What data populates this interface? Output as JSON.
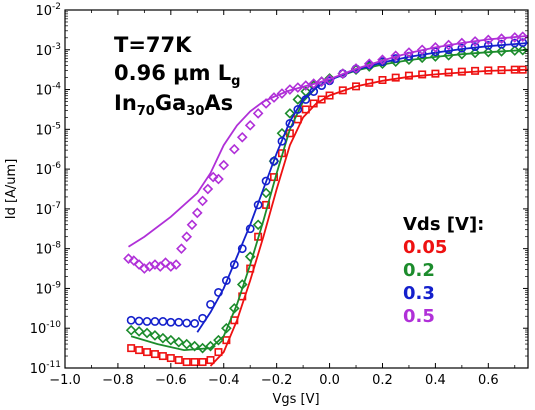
{
  "chart_data": {
    "type": "scatter",
    "title": "",
    "xlabel": "Vgs [V]",
    "ylabel": "Id [A/um]",
    "xlim": [
      -1.0,
      0.75
    ],
    "ylim_log10": [
      -11,
      -2
    ],
    "yscale": "log",
    "x_ticks": [
      "−1.0",
      "−0.8",
      "−0.6",
      "−0.4",
      "−0.2",
      "0.0",
      "0.2",
      "0.4",
      "0.6"
    ],
    "y_ticks": [
      "10-11",
      "10-10",
      "10-9",
      "10-8",
      "10-7",
      "10-6",
      "10-5",
      "10-4",
      "10-3",
      "10-2"
    ],
    "annotations": {
      "temp": "T=77K",
      "length_value": "0.96 μm L",
      "length_sub": "g",
      "material_a": "In",
      "material_sub1": "70",
      "material_b": "Ga",
      "material_sub2": "30",
      "material_c": "As"
    },
    "legend_title": "Vds [V]:",
    "legend_position": "right",
    "series": [
      {
        "name": "0.05",
        "color": "#ee1111",
        "marker": "square",
        "points": [
          [
            -0.75,
            -10.5
          ],
          [
            -0.72,
            -10.55
          ],
          [
            -0.69,
            -10.6
          ],
          [
            -0.66,
            -10.65
          ],
          [
            -0.63,
            -10.7
          ],
          [
            -0.6,
            -10.75
          ],
          [
            -0.57,
            -10.8
          ],
          [
            -0.54,
            -10.85
          ],
          [
            -0.51,
            -10.85
          ],
          [
            -0.48,
            -10.85
          ],
          [
            -0.45,
            -10.8
          ],
          [
            -0.42,
            -10.6
          ],
          [
            -0.39,
            -10.3
          ],
          [
            -0.36,
            -9.8
          ],
          [
            -0.33,
            -9.2
          ],
          [
            -0.3,
            -8.5
          ],
          [
            -0.27,
            -7.7
          ],
          [
            -0.24,
            -6.9
          ],
          [
            -0.21,
            -6.2
          ],
          [
            -0.18,
            -5.6
          ],
          [
            -0.15,
            -5.1
          ],
          [
            -0.12,
            -4.75
          ],
          [
            -0.09,
            -4.5
          ],
          [
            -0.06,
            -4.35
          ],
          [
            -0.03,
            -4.25
          ],
          [
            0.0,
            -4.15
          ],
          [
            0.05,
            -4.02
          ],
          [
            0.1,
            -3.92
          ],
          [
            0.15,
            -3.83
          ],
          [
            0.2,
            -3.76
          ],
          [
            0.25,
            -3.7
          ],
          [
            0.3,
            -3.65
          ],
          [
            0.35,
            -3.62
          ],
          [
            0.4,
            -3.6
          ],
          [
            0.45,
            -3.57
          ],
          [
            0.5,
            -3.55
          ],
          [
            0.55,
            -3.53
          ],
          [
            0.6,
            -3.52
          ],
          [
            0.65,
            -3.51
          ],
          [
            0.7,
            -3.5
          ],
          [
            0.73,
            -3.5
          ]
        ],
        "fit": [
          [
            -0.45,
            -10.95
          ],
          [
            -0.4,
            -10.6
          ],
          [
            -0.35,
            -9.8
          ],
          [
            -0.3,
            -8.8
          ],
          [
            -0.25,
            -7.7
          ],
          [
            -0.2,
            -6.5
          ],
          [
            -0.15,
            -5.4
          ],
          [
            -0.1,
            -4.7
          ],
          [
            -0.05,
            -4.35
          ],
          [
            0.0,
            -4.15
          ],
          [
            0.1,
            -3.92
          ],
          [
            0.2,
            -3.78
          ],
          [
            0.3,
            -3.68
          ],
          [
            0.4,
            -3.62
          ],
          [
            0.5,
            -3.57
          ],
          [
            0.6,
            -3.53
          ],
          [
            0.75,
            -3.5
          ]
        ]
      },
      {
        "name": "0.2",
        "color": "#1c8c2c",
        "marker": "diamond",
        "points": [
          [
            -0.75,
            -10.05
          ],
          [
            -0.72,
            -10.08
          ],
          [
            -0.69,
            -10.12
          ],
          [
            -0.66,
            -10.18
          ],
          [
            -0.63,
            -10.25
          ],
          [
            -0.6,
            -10.3
          ],
          [
            -0.57,
            -10.35
          ],
          [
            -0.54,
            -10.4
          ],
          [
            -0.51,
            -10.45
          ],
          [
            -0.48,
            -10.5
          ],
          [
            -0.45,
            -10.45
          ],
          [
            -0.42,
            -10.3
          ],
          [
            -0.39,
            -10.0
          ],
          [
            -0.36,
            -9.5
          ],
          [
            -0.33,
            -8.9
          ],
          [
            -0.3,
            -8.2
          ],
          [
            -0.27,
            -7.4
          ],
          [
            -0.24,
            -6.6
          ],
          [
            -0.21,
            -5.8
          ],
          [
            -0.18,
            -5.1
          ],
          [
            -0.15,
            -4.6
          ],
          [
            -0.12,
            -4.25
          ],
          [
            -0.09,
            -4.05
          ],
          [
            -0.06,
            -3.9
          ],
          [
            -0.03,
            -3.8
          ],
          [
            0.0,
            -3.72
          ],
          [
            0.05,
            -3.6
          ],
          [
            0.1,
            -3.5
          ],
          [
            0.15,
            -3.42
          ],
          [
            0.2,
            -3.35
          ],
          [
            0.25,
            -3.3
          ],
          [
            0.3,
            -3.25
          ],
          [
            0.35,
            -3.2
          ],
          [
            0.4,
            -3.17
          ],
          [
            0.45,
            -3.14
          ],
          [
            0.5,
            -3.11
          ],
          [
            0.55,
            -3.08
          ],
          [
            0.6,
            -3.06
          ],
          [
            0.65,
            -3.04
          ],
          [
            0.7,
            -3.02
          ],
          [
            0.73,
            -3.01
          ]
        ],
        "fit": [
          [
            -0.75,
            -10.2
          ],
          [
            -0.65,
            -10.4
          ],
          [
            -0.55,
            -10.55
          ],
          [
            -0.45,
            -10.5
          ],
          [
            -0.4,
            -10.2
          ],
          [
            -0.35,
            -9.4
          ],
          [
            -0.3,
            -8.4
          ],
          [
            -0.25,
            -7.3
          ],
          [
            -0.2,
            -6.1
          ],
          [
            -0.15,
            -5.0
          ],
          [
            -0.1,
            -4.3
          ],
          [
            -0.05,
            -3.95
          ],
          [
            0.0,
            -3.75
          ],
          [
            0.1,
            -3.52
          ],
          [
            0.2,
            -3.37
          ],
          [
            0.3,
            -3.26
          ],
          [
            0.4,
            -3.18
          ],
          [
            0.5,
            -3.11
          ],
          [
            0.6,
            -3.06
          ],
          [
            0.75,
            -3.0
          ]
        ]
      },
      {
        "name": "0.3",
        "color": "#1420cc",
        "marker": "circle",
        "points": [
          [
            -0.75,
            -9.8
          ],
          [
            -0.72,
            -9.82
          ],
          [
            -0.69,
            -9.83
          ],
          [
            -0.66,
            -9.83
          ],
          [
            -0.63,
            -9.83
          ],
          [
            -0.6,
            -9.85
          ],
          [
            -0.57,
            -9.85
          ],
          [
            -0.54,
            -9.87
          ],
          [
            -0.51,
            -9.88
          ],
          [
            -0.48,
            -9.75
          ],
          [
            -0.45,
            -9.4
          ],
          [
            -0.42,
            -9.1
          ],
          [
            -0.39,
            -8.8
          ],
          [
            -0.36,
            -8.4
          ],
          [
            -0.33,
            -8.0
          ],
          [
            -0.3,
            -7.5
          ],
          [
            -0.27,
            -6.9
          ],
          [
            -0.24,
            -6.3
          ],
          [
            -0.21,
            -5.8
          ],
          [
            -0.18,
            -5.3
          ],
          [
            -0.15,
            -4.85
          ],
          [
            -0.12,
            -4.5
          ],
          [
            -0.09,
            -4.25
          ],
          [
            -0.06,
            -4.05
          ],
          [
            -0.03,
            -3.9
          ],
          [
            0.0,
            -3.78
          ],
          [
            0.05,
            -3.6
          ],
          [
            0.1,
            -3.48
          ],
          [
            0.15,
            -3.38
          ],
          [
            0.2,
            -3.3
          ],
          [
            0.25,
            -3.22
          ],
          [
            0.3,
            -3.16
          ],
          [
            0.35,
            -3.1
          ],
          [
            0.4,
            -3.05
          ],
          [
            0.45,
            -3.0
          ],
          [
            0.5,
            -2.96
          ],
          [
            0.55,
            -2.92
          ],
          [
            0.6,
            -2.89
          ],
          [
            0.65,
            -2.86
          ],
          [
            0.7,
            -2.83
          ],
          [
            0.73,
            -2.82
          ]
        ],
        "fit": [
          [
            -0.5,
            -10.1
          ],
          [
            -0.45,
            -9.6
          ],
          [
            -0.4,
            -9.0
          ],
          [
            -0.35,
            -8.2
          ],
          [
            -0.3,
            -7.4
          ],
          [
            -0.25,
            -6.5
          ],
          [
            -0.2,
            -5.6
          ],
          [
            -0.15,
            -4.8
          ],
          [
            -0.1,
            -4.25
          ],
          [
            -0.05,
            -3.95
          ],
          [
            0.0,
            -3.76
          ],
          [
            0.1,
            -3.5
          ],
          [
            0.2,
            -3.32
          ],
          [
            0.3,
            -3.18
          ],
          [
            0.4,
            -3.07
          ],
          [
            0.5,
            -2.98
          ],
          [
            0.6,
            -2.91
          ],
          [
            0.75,
            -2.83
          ]
        ]
      },
      {
        "name": "0.5",
        "color": "#b030d8",
        "marker": "diamond",
        "points": [
          [
            -0.76,
            -8.25
          ],
          [
            -0.74,
            -8.3
          ],
          [
            -0.72,
            -8.4
          ],
          [
            -0.7,
            -8.5
          ],
          [
            -0.68,
            -8.45
          ],
          [
            -0.66,
            -8.4
          ],
          [
            -0.64,
            -8.45
          ],
          [
            -0.62,
            -8.35
          ],
          [
            -0.6,
            -8.45
          ],
          [
            -0.58,
            -8.4
          ],
          [
            -0.56,
            -8.0
          ],
          [
            -0.54,
            -7.7
          ],
          [
            -0.52,
            -7.4
          ],
          [
            -0.5,
            -7.1
          ],
          [
            -0.48,
            -6.8
          ],
          [
            -0.46,
            -6.5
          ],
          [
            -0.44,
            -6.2
          ],
          [
            -0.42,
            -6.25
          ],
          [
            -0.4,
            -5.9
          ],
          [
            -0.36,
            -5.5
          ],
          [
            -0.33,
            -5.2
          ],
          [
            -0.3,
            -4.9
          ],
          [
            -0.27,
            -4.6
          ],
          [
            -0.24,
            -4.35
          ],
          [
            -0.21,
            -4.2
          ],
          [
            -0.18,
            -4.1
          ],
          [
            -0.15,
            -4.0
          ],
          [
            -0.12,
            -3.95
          ],
          [
            -0.09,
            -3.9
          ],
          [
            -0.06,
            -3.85
          ],
          [
            -0.03,
            -3.8
          ],
          [
            0.0,
            -3.75
          ],
          [
            0.05,
            -3.6
          ],
          [
            0.1,
            -3.47
          ],
          [
            0.15,
            -3.35
          ],
          [
            0.2,
            -3.25
          ],
          [
            0.25,
            -3.15
          ],
          [
            0.3,
            -3.07
          ],
          [
            0.35,
            -3.0
          ],
          [
            0.4,
            -2.94
          ],
          [
            0.45,
            -2.88
          ],
          [
            0.5,
            -2.83
          ],
          [
            0.55,
            -2.79
          ],
          [
            0.6,
            -2.75
          ],
          [
            0.65,
            -2.72
          ],
          [
            0.7,
            -2.69
          ],
          [
            0.73,
            -2.67
          ]
        ],
        "fit": [
          [
            -0.76,
            -7.95
          ],
          [
            -0.7,
            -7.7
          ],
          [
            -0.6,
            -7.2
          ],
          [
            -0.5,
            -6.6
          ],
          [
            -0.45,
            -6.1
          ],
          [
            -0.4,
            -5.4
          ],
          [
            -0.35,
            -4.9
          ],
          [
            -0.3,
            -4.55
          ],
          [
            -0.25,
            -4.3
          ],
          [
            -0.2,
            -4.15
          ],
          [
            -0.15,
            -4.02
          ],
          [
            -0.1,
            -3.93
          ],
          [
            -0.05,
            -3.84
          ],
          [
            0.0,
            -3.74
          ],
          [
            0.1,
            -3.48
          ],
          [
            0.2,
            -3.27
          ],
          [
            0.3,
            -3.08
          ],
          [
            0.4,
            -2.94
          ],
          [
            0.5,
            -2.83
          ],
          [
            0.6,
            -2.74
          ],
          [
            0.75,
            -2.65
          ]
        ]
      }
    ]
  }
}
